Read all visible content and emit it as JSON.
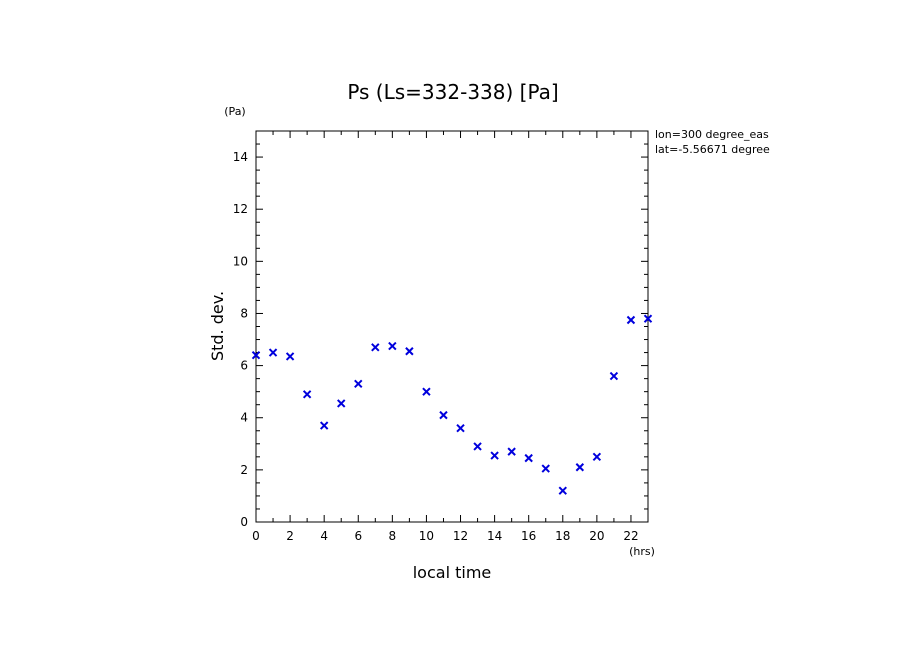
{
  "chart_data": {
    "type": "scatter",
    "title": "Ps (Ls=332-338) [Pa]",
    "xlabel": "local time",
    "ylabel": "Std. dev.",
    "x_unit": "(hrs)",
    "y_unit": "(Pa)",
    "xlim": [
      0,
      23
    ],
    "ylim": [
      0,
      15
    ],
    "x_ticks": [
      0,
      2,
      4,
      6,
      8,
      10,
      12,
      14,
      16,
      18,
      20,
      22
    ],
    "y_ticks": [
      0,
      2,
      4,
      6,
      8,
      10,
      12,
      14
    ],
    "annotations": [
      "lon=300 degree_eas",
      "lat=-5.56671 degree"
    ],
    "marker": "x",
    "marker_color": "#0000dd",
    "grid": false,
    "x": [
      0,
      1,
      2,
      3,
      4,
      5,
      6,
      7,
      8,
      9,
      10,
      11,
      12,
      13,
      14,
      15,
      16,
      17,
      18,
      19,
      20,
      21,
      22,
      23
    ],
    "y": [
      6.4,
      6.5,
      6.35,
      4.9,
      3.7,
      4.55,
      5.3,
      6.7,
      6.75,
      6.55,
      5.0,
      4.1,
      3.6,
      2.9,
      2.55,
      2.7,
      2.45,
      2.05,
      1.2,
      2.1,
      2.5,
      5.6,
      7.75,
      7.8
    ]
  }
}
